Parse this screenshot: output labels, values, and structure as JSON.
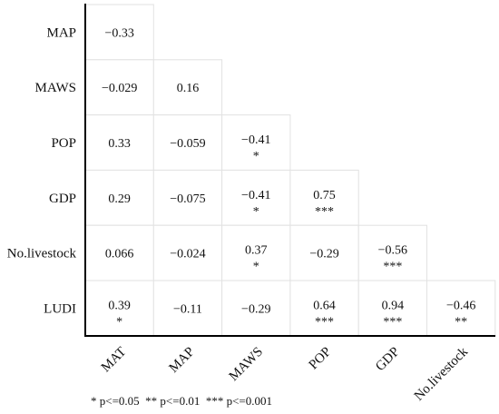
{
  "chart_data": {
    "type": "heatmap",
    "title": "",
    "row_labels": [
      "MAP",
      "MAWS",
      "POP",
      "GDP",
      "No.livestock",
      "LUDI"
    ],
    "col_labels": [
      "MAT",
      "MAP",
      "MAWS",
      "POP",
      "GDP",
      "No.livestock"
    ],
    "rows": [
      {
        "row": "MAP",
        "values": [
          "−0.33"
        ],
        "stars": [
          ""
        ]
      },
      {
        "row": "MAWS",
        "values": [
          "−0.029",
          "0.16"
        ],
        "stars": [
          "",
          ""
        ]
      },
      {
        "row": "POP",
        "values": [
          "0.33",
          "−0.059",
          "−0.41"
        ],
        "stars": [
          "",
          "",
          "*"
        ]
      },
      {
        "row": "GDP",
        "values": [
          "0.29",
          "−0.075",
          "−0.41",
          "0.75"
        ],
        "stars": [
          "",
          "",
          "*",
          "***"
        ]
      },
      {
        "row": "No.livestock",
        "values": [
          "0.066",
          "−0.024",
          "0.37",
          "−0.29",
          "−0.56"
        ],
        "stars": [
          "",
          "",
          "*",
          "",
          "***"
        ]
      },
      {
        "row": "LUDI",
        "values": [
          "0.39",
          "−0.11",
          "−0.29",
          "0.64",
          "0.94",
          "−0.46"
        ],
        "stars": [
          "*",
          "",
          "",
          "***",
          "***",
          "**"
        ]
      }
    ],
    "legend": "* p<=0.05  ** p<=0.01  *** p<=0.001"
  }
}
